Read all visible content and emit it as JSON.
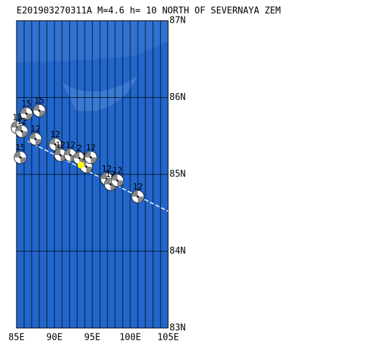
{
  "title": "E201903270311A  M=4.6 h= 10 NORTH OF SEVERNAYA ZEM",
  "map": {
    "xlim": [
      85,
      105
    ],
    "ylim": [
      83,
      87
    ],
    "xticks": [
      {
        "value": 85,
        "label": "85E"
      },
      {
        "value": 90,
        "label": "90E"
      },
      {
        "value": 95,
        "label": "95E"
      },
      {
        "value": 100,
        "label": "100E"
      },
      {
        "value": 105,
        "label": "105E"
      }
    ],
    "yticks": [
      {
        "value": 83,
        "label": "83N"
      },
      {
        "value": 84,
        "label": "84N"
      },
      {
        "value": 85,
        "label": "85N"
      },
      {
        "value": 86,
        "label": "86N"
      },
      {
        "value": 87,
        "label": "87N"
      }
    ],
    "events": [
      {
        "lon": 86.3,
        "lat": 85.79,
        "label": "15"
      },
      {
        "lon": 88.0,
        "lat": 85.83,
        "label": "15"
      },
      {
        "lon": 85.1,
        "lat": 85.61,
        "label": "15"
      },
      {
        "lon": 85.7,
        "lat": 85.56,
        "label": "12"
      },
      {
        "lon": 87.5,
        "lat": 85.46,
        "label": "12"
      },
      {
        "lon": 85.5,
        "lat": 85.22,
        "label": "15"
      },
      {
        "lon": 90.1,
        "lat": 85.39,
        "label": "12"
      },
      {
        "lon": 90.8,
        "lat": 85.25,
        "label": "12"
      },
      {
        "lon": 92.1,
        "lat": 85.25,
        "label": "12"
      },
      {
        "lon": 93.3,
        "lat": 85.21,
        "label": "2"
      },
      {
        "lon": 94.2,
        "lat": 85.1,
        "label": "15"
      },
      {
        "lon": 94.8,
        "lat": 85.22,
        "label": "12"
      },
      {
        "lon": 96.9,
        "lat": 84.94,
        "label": "12"
      },
      {
        "lon": 97.4,
        "lat": 84.87,
        "label": "12"
      },
      {
        "lon": 98.3,
        "lat": 84.92,
        "label": "12"
      },
      {
        "lon": 101.0,
        "lat": 84.71,
        "label": "12"
      }
    ],
    "epicenter": {
      "lon": 93.5,
      "lat": 85.12,
      "color": "#ffff00"
    },
    "trench": {
      "lon": [
        86.5,
        105
      ],
      "lat": [
        85.43,
        84.52
      ]
    }
  }
}
